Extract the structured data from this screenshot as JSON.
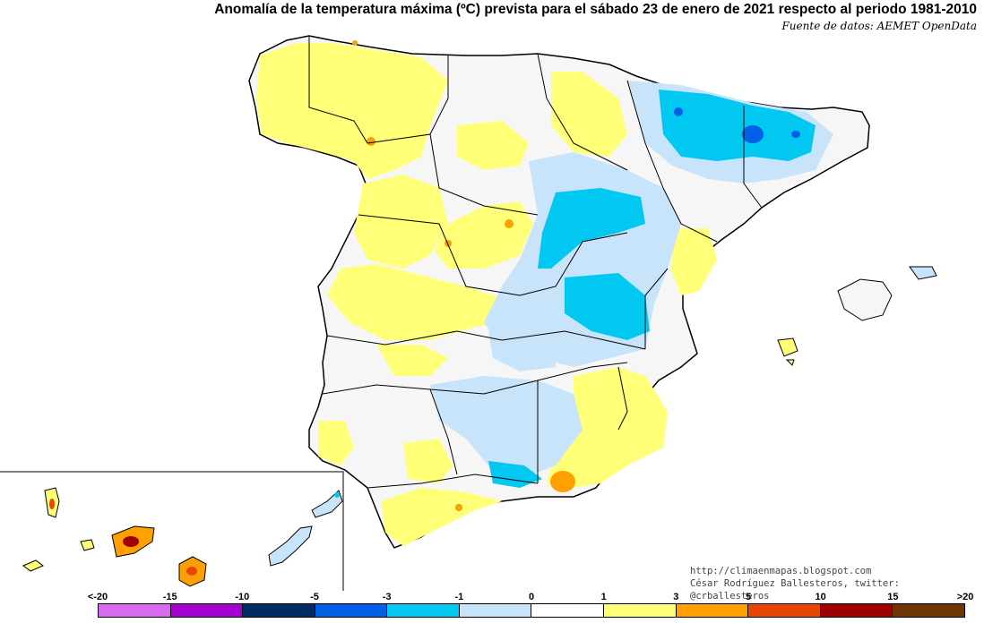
{
  "title": "Anomalía de la temperatura máxima (ºC) prevista para el sábado 23 de enero de 2021 respecto al periodo 1981-2010",
  "source": "Fuente de datos: AEMET OpenData",
  "credits": {
    "url": "http://climaenmapas.blogspot.com",
    "author": "César Rodríguez Ballesteros, twitter: @crballesteros"
  },
  "legend": {
    "labels": [
      "<-20",
      "-15",
      "-10",
      "-5",
      "-3",
      "-1",
      "0",
      "1",
      "3",
      "5",
      "10",
      "15",
      ">20"
    ],
    "colors": [
      "#d96af0",
      "#a400d0",
      "#002c66",
      "#0060e6",
      "#00c8f0",
      "#c8e4fa",
      "#ffffff",
      "#ffff78",
      "#ffa000",
      "#e64600",
      "#a00000",
      "#6e3600"
    ]
  },
  "colors": {
    "border": "#000000",
    "land_base": "#f6f6f6"
  }
}
